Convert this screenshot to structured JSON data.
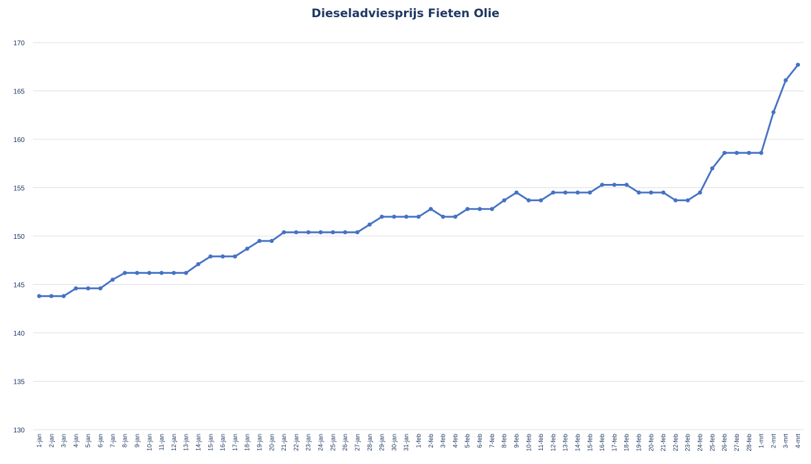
{
  "chart_data": {
    "type": "line",
    "title": "Dieseladviesprijs Fieten Olie",
    "xlabel": "",
    "ylabel": "",
    "ylim": [
      130,
      170
    ],
    "yticks": [
      130,
      135,
      140,
      145,
      150,
      155,
      160,
      165,
      170
    ],
    "grid": true,
    "line_color": "#4472c4",
    "title_color": "#1f3864",
    "categories": [
      "1-jan",
      "2-jan",
      "3-jan",
      "4-jan",
      "5-jan",
      "6-jan",
      "7-jan",
      "8-jan",
      "9-jan",
      "10-jan",
      "11-jan",
      "12-jan",
      "13-jan",
      "14-jan",
      "15-jan",
      "16-jan",
      "17-jan",
      "18-jan",
      "19-jan",
      "20-jan",
      "21-jan",
      "22-jan",
      "23-jan",
      "24-jan",
      "25-jan",
      "26-jan",
      "27-jan",
      "28-jan",
      "29-jan",
      "30-jan",
      "31-jan",
      "1-feb",
      "2-feb",
      "3-feb",
      "4-feb",
      "5-feb",
      "6-feb",
      "7-feb",
      "8-feb",
      "9-feb",
      "10-feb",
      "11-feb",
      "12-feb",
      "13-feb",
      "14-feb",
      "15-feb",
      "16-feb",
      "17-feb",
      "18-feb",
      "19-feb",
      "20-feb",
      "21-feb",
      "22-feb",
      "23-feb",
      "24-feb",
      "25-feb",
      "26-feb",
      "27-feb",
      "28-feb",
      "1-mrt",
      "2-mrt",
      "3-mrt",
      "4-mrt"
    ],
    "series": [
      {
        "values": [
          143.8,
          143.8,
          143.8,
          144.6,
          144.6,
          144.6,
          145.5,
          146.2,
          146.2,
          146.2,
          146.2,
          146.2,
          146.2,
          147.1,
          147.9,
          147.9,
          147.9,
          148.7,
          149.5,
          149.5,
          150.4,
          150.4,
          150.4,
          150.4,
          150.4,
          150.4,
          150.4,
          151.2,
          152.0,
          152.0,
          152.0,
          152.0,
          152.8,
          152.0,
          152.0,
          152.8,
          152.8,
          152.8,
          153.7,
          154.5,
          153.7,
          153.7,
          154.5,
          154.5,
          154.5,
          154.5,
          155.3,
          155.3,
          155.3,
          154.5,
          154.5,
          154.5,
          153.7,
          153.7,
          154.5,
          157.0,
          158.6,
          158.6,
          158.6,
          158.6,
          162.8,
          166.1,
          167.7
        ]
      }
    ]
  }
}
